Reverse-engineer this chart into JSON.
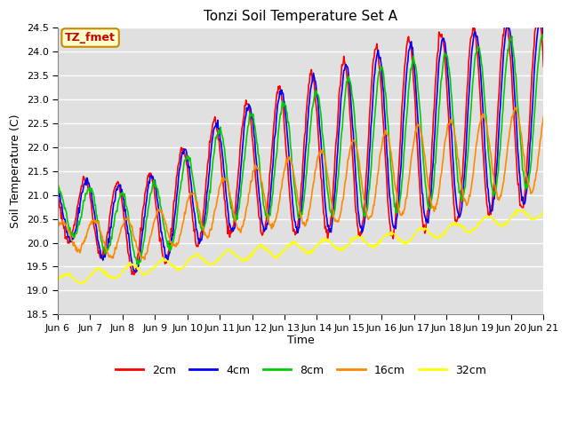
{
  "title": "Tonzi Soil Temperature Set A",
  "xlabel": "Time",
  "ylabel": "Soil Temperature (C)",
  "ylim": [
    18.5,
    24.5
  ],
  "xlim": [
    0,
    360
  ],
  "yticks": [
    18.5,
    19.0,
    19.5,
    20.0,
    20.5,
    21.0,
    21.5,
    22.0,
    22.5,
    23.0,
    23.5,
    24.0,
    24.5
  ],
  "xtick_labels": [
    "Jun 6",
    "Jun 7",
    "Jun 8",
    "Jun 9",
    "Jun 10",
    "Jun 11",
    "Jun 12",
    "Jun 13",
    "Jun 14",
    "Jun 15",
    "Jun 16",
    "Jun 17",
    "Jun 18",
    "Jun 19",
    "Jun 20",
    "Jun 21"
  ],
  "xtick_positions": [
    0,
    24,
    48,
    72,
    96,
    120,
    144,
    168,
    192,
    216,
    240,
    264,
    288,
    312,
    336,
    360
  ],
  "legend_labels": [
    "2cm",
    "4cm",
    "8cm",
    "16cm",
    "32cm"
  ],
  "line_colors": [
    "#ff0000",
    "#0000ff",
    "#00cc00",
    "#ff8800",
    "#ffff00"
  ],
  "line_widths": [
    1.2,
    1.2,
    1.2,
    1.2,
    1.2
  ],
  "annotation_text": "TZ_fmet",
  "annotation_color": "#cc0000",
  "annotation_bg": "#ffffcc",
  "annotation_border": "#cc8800",
  "plot_bg_color": "#e0e0e0",
  "fig_bg_color": "#ffffff",
  "grid_color": "#ffffff",
  "title_fontsize": 11,
  "axis_fontsize": 9,
  "tick_fontsize": 8
}
